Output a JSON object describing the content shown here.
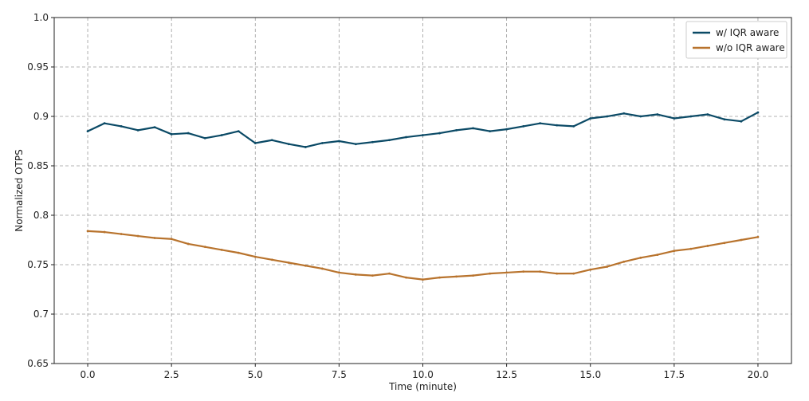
{
  "chart_data": {
    "type": "line",
    "title": "",
    "xlabel": "Time (minute)",
    "ylabel": "Normalized OTPS",
    "xlim": [
      -1.0,
      21.0
    ],
    "ylim": [
      0.65,
      1.0
    ],
    "xticks": [
      0.0,
      2.5,
      5.0,
      7.5,
      10.0,
      12.5,
      15.0,
      17.5,
      20.0
    ],
    "xtick_labels": [
      "0.0",
      "2.5",
      "5.0",
      "7.5",
      "10.0",
      "12.5",
      "15.0",
      "17.5",
      "20.0"
    ],
    "yticks": [
      0.65,
      0.7,
      0.75,
      0.8,
      0.85,
      0.9,
      0.95,
      1.0
    ],
    "ytick_labels": [
      "0.65",
      "0.7",
      "0.75",
      "0.8",
      "0.85",
      "0.9",
      "0.95",
      "1.0"
    ],
    "grid": true,
    "legend_position": "top-right",
    "x": [
      0.0,
      0.5,
      1.0,
      1.5,
      2.0,
      2.5,
      3.0,
      3.5,
      4.0,
      4.5,
      5.0,
      5.5,
      6.0,
      6.5,
      7.0,
      7.5,
      8.0,
      8.5,
      9.0,
      9.5,
      10.0,
      10.5,
      11.0,
      11.5,
      12.0,
      12.5,
      13.0,
      13.5,
      14.0,
      14.5,
      15.0,
      15.5,
      16.0,
      16.5,
      17.0,
      17.5,
      18.0,
      18.5,
      19.0,
      19.5,
      20.0
    ],
    "series": [
      {
        "name": "w/ IQR aware",
        "color": "#0b4a66",
        "values": [
          0.885,
          0.893,
          0.89,
          0.886,
          0.889,
          0.882,
          0.883,
          0.878,
          0.881,
          0.885,
          0.873,
          0.876,
          0.872,
          0.869,
          0.873,
          0.875,
          0.872,
          0.874,
          0.876,
          0.879,
          0.881,
          0.883,
          0.886,
          0.888,
          0.885,
          0.887,
          0.89,
          0.893,
          0.891,
          0.89,
          0.898,
          0.9,
          0.903,
          0.9,
          0.902,
          0.898,
          0.9,
          0.902,
          0.897,
          0.895,
          0.904
        ]
      },
      {
        "name": "w/o IQR aware",
        "color": "#b8732d",
        "values": [
          0.784,
          0.783,
          0.781,
          0.779,
          0.777,
          0.776,
          0.771,
          0.768,
          0.765,
          0.762,
          0.758,
          0.755,
          0.752,
          0.749,
          0.746,
          0.742,
          0.74,
          0.739,
          0.741,
          0.737,
          0.735,
          0.737,
          0.738,
          0.739,
          0.741,
          0.742,
          0.743,
          0.743,
          0.741,
          0.741,
          0.745,
          0.748,
          0.753,
          0.757,
          0.76,
          0.764,
          0.766,
          0.769,
          0.772,
          0.775,
          0.778
        ]
      }
    ]
  }
}
